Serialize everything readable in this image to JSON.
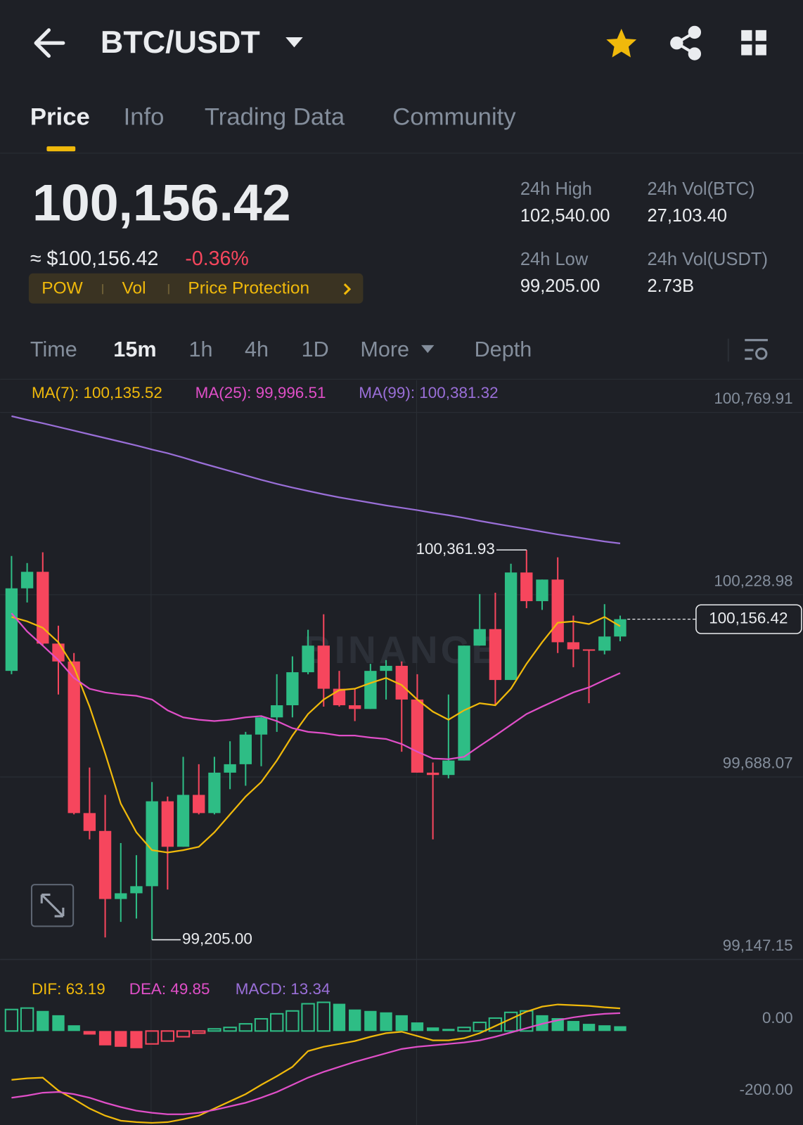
{
  "header": {
    "title": "BTC/USDT"
  },
  "tabs": [
    "Price",
    "Info",
    "Trading Data",
    "Community"
  ],
  "ticker": {
    "price": "100,156.42",
    "approx": "≈ $100,156.42",
    "change": "-0.36%",
    "tags": [
      "POW",
      "Vol",
      "Price Protection"
    ]
  },
  "stats": [
    {
      "label": "24h High",
      "value": "102,540.00"
    },
    {
      "label": "24h Vol(BTC)",
      "value": "27,103.40"
    },
    {
      "label": "24h Low",
      "value": "99,205.00"
    },
    {
      "label": "24h Vol(USDT)",
      "value": "2.73B"
    }
  ],
  "intervals": [
    "Time",
    "15m",
    "1h",
    "4h",
    "1D",
    "More",
    "Depth"
  ],
  "chart_data": [
    {
      "type": "candlestick",
      "up_color": "#2ebd85",
      "down_color": "#f6465d",
      "watermark": "BINANCE",
      "grid": true,
      "ylim": [
        99147.15,
        100865.5
      ],
      "yticks": [
        {
          "value": 99147.15,
          "label": "99,147.15"
        },
        {
          "value": 99688.07,
          "label": "99,688.07"
        },
        {
          "value": 100228.98,
          "label": "100,228.98"
        },
        {
          "value": 100769.91,
          "label": "100,769.91"
        }
      ],
      "ohlc": [
        [
          100003,
          100344,
          99993,
          100248
        ],
        [
          100248,
          100323,
          100206,
          100297
        ],
        [
          100297,
          100355,
          100078,
          100084
        ],
        [
          100084,
          100137,
          99933,
          100031
        ],
        [
          100031,
          100056,
          99577,
          99581
        ],
        [
          99581,
          99716,
          99503,
          99528
        ],
        [
          99528,
          99635,
          99212,
          99326
        ],
        [
          99326,
          99492,
          99258,
          99343
        ],
        [
          99343,
          99456,
          99268,
          99364
        ],
        [
          99364,
          99673,
          99205,
          99616
        ],
        [
          99616,
          99630,
          99354,
          99481
        ],
        [
          99481,
          99748,
          99481,
          99635
        ],
        [
          99635,
          99726,
          99577,
          99581
        ],
        [
          99581,
          99748,
          99577,
          99701
        ],
        [
          99701,
          99794,
          99652,
          99726
        ],
        [
          99726,
          99822,
          99662,
          99814
        ],
        [
          99814,
          99869,
          99720,
          99865
        ],
        [
          99865,
          99993,
          99822,
          99901
        ],
        [
          99901,
          100046,
          99865,
          99999
        ],
        [
          99999,
          100125,
          99993,
          100078
        ],
        [
          100078,
          100171,
          99897,
          99950
        ],
        [
          99950,
          100003,
          99897,
          99901
        ],
        [
          99901,
          99950,
          99854,
          99890
        ],
        [
          99890,
          100024,
          99890,
          100003
        ],
        [
          100003,
          100035,
          99918,
          100018
        ],
        [
          100018,
          100031,
          99763,
          99918
        ],
        [
          99918,
          99993,
          99701,
          99701
        ],
        [
          99701,
          99731,
          99503,
          99694
        ],
        [
          99694,
          99933,
          99684,
          99737
        ],
        [
          99737,
          100078,
          99737,
          100078
        ],
        [
          100078,
          100231,
          100078,
          100127
        ],
        [
          100127,
          100235,
          99901,
          99976
        ],
        [
          99976,
          100321,
          99976,
          100295
        ],
        [
          100295,
          100361.93,
          100189,
          100210
        ],
        [
          100210,
          100274,
          100184,
          100274
        ],
        [
          100274,
          100340,
          100056,
          100088
        ],
        [
          100088,
          100167,
          100014,
          100067
        ],
        [
          100067,
          100067,
          99907,
          100063
        ],
        [
          100063,
          100201,
          100052,
          100105
        ],
        [
          100105,
          100167,
          100091,
          100156.42
        ]
      ],
      "series": [
        {
          "name": "MA(7): 100,135.52",
          "color": "#f0b90b",
          "values": [
            100163,
            100150,
            100131,
            100088,
            100014,
            99897,
            99758,
            99609,
            99524,
            99471,
            99464,
            99471,
            99481,
            99524,
            99577,
            99630,
            99673,
            99737,
            99811,
            99875,
            99918,
            99946,
            99950,
            99967,
            99982,
            99961,
            99918,
            99882,
            99858,
            99886,
            99907,
            99901,
            99950,
            100024,
            100088,
            100146,
            100150,
            100142,
            100163,
            100135.52
          ]
        },
        {
          "name": "MA(25): 99,996.51",
          "color": "#e04fc8",
          "values": [
            100174,
            100120,
            100078,
            100035,
            99982,
            99950,
            99939,
            99933,
            99929,
            99918,
            99886,
            99865,
            99858,
            99854,
            99858,
            99865,
            99869,
            99854,
            99833,
            99822,
            99818,
            99811,
            99811,
            99805,
            99801,
            99786,
            99763,
            99743,
            99741,
            99748,
            99780,
            99811,
            99843,
            99875,
            99897,
            99918,
            99939,
            99954,
            99976,
            99996.51
          ]
        },
        {
          "name": "MA(99): 100,381.32",
          "color": "#9a6fd8",
          "values": [
            100759,
            100748,
            100738,
            100727,
            100716,
            100705,
            100694,
            100683,
            100672,
            100660,
            100649,
            100636,
            100622,
            100609,
            100596,
            100583,
            100570,
            100558,
            100547,
            100537,
            100527,
            100518,
            100510,
            100502,
            100494,
            100487,
            100480,
            100472,
            100465,
            100457,
            100448,
            100440,
            100432,
            100424,
            100416,
            100408,
            100401,
            100394,
            100387,
            100381.32
          ]
        }
      ],
      "annotations": [
        {
          "value": 100361.93,
          "label": "100,361.93"
        },
        {
          "value": 99205,
          "label": "99,205.00"
        }
      ],
      "last_price": {
        "value": 100156.42,
        "label": "100,156.42"
      }
    },
    {
      "type": "macd",
      "up_color": "#2ebd85",
      "down_color": "#f6465d",
      "macd_color": "#9a6fd8",
      "histogram_name": "MACD: 13.34",
      "ylim": [
        -262,
        184
      ],
      "yticks": [
        {
          "value": 0,
          "label": "0.00"
        },
        {
          "value": -200,
          "label": "-200.00"
        }
      ],
      "values": [
        60,
        64,
        56,
        44,
        16,
        -10,
        -40,
        -44,
        -48,
        -36,
        -28,
        -16,
        -6,
        6,
        10,
        20,
        34,
        48,
        56,
        76,
        80,
        76,
        60,
        56,
        52,
        44,
        24,
        10,
        6,
        10,
        24,
        36,
        52,
        56,
        44,
        36,
        28,
        20,
        16,
        13.34
      ],
      "series": [
        {
          "name": "DIF: 63.19",
          "color": "#f0b90b",
          "values": [
            -136,
            -132,
            -130,
            -166,
            -190,
            -216,
            -236,
            -250,
            -254,
            -256,
            -254,
            -246,
            -236,
            -216,
            -196,
            -176,
            -150,
            -126,
            -100,
            -56,
            -44,
            -36,
            -28,
            -16,
            -6,
            -2,
            -14,
            -26,
            -26,
            -20,
            -6,
            14,
            34,
            54,
            68,
            74,
            72,
            70,
            66,
            63.19
          ]
        },
        {
          "name": "DEA: 49.85",
          "color": "#e04fc8",
          "values": [
            -186,
            -180,
            -172,
            -170,
            -176,
            -186,
            -200,
            -212,
            -222,
            -228,
            -232,
            -232,
            -228,
            -220,
            -210,
            -200,
            -186,
            -170,
            -150,
            -130,
            -114,
            -100,
            -86,
            -74,
            -62,
            -50,
            -44,
            -40,
            -36,
            -32,
            -26,
            -16,
            -4,
            8,
            20,
            30,
            38,
            44,
            48,
            49.85
          ]
        }
      ]
    }
  ]
}
